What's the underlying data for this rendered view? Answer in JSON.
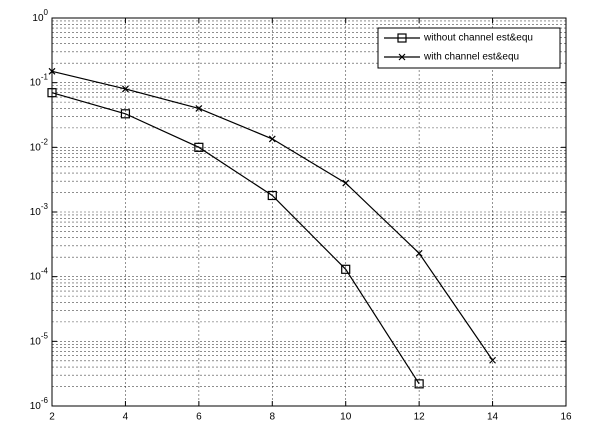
{
  "chart_data": {
    "type": "line",
    "log_y": true,
    "grid": true,
    "legend": "upper right",
    "xlim": [
      2,
      16
    ],
    "xticks": [
      2,
      4,
      6,
      8,
      10,
      12,
      14,
      16
    ],
    "ylim": [
      1e-06,
      1
    ],
    "yticks": [
      {
        "value": 1e-06,
        "label": "10^-6"
      },
      {
        "value": 1e-05,
        "label": "10^-5"
      },
      {
        "value": 0.0001,
        "label": "10^-4"
      },
      {
        "value": 0.001,
        "label": "10^-3"
      },
      {
        "value": 0.01,
        "label": "10^-2"
      },
      {
        "value": 0.1,
        "label": "10^-1"
      },
      {
        "value": 1,
        "label": "10^0"
      }
    ],
    "series": [
      {
        "name": "without channel est&equ",
        "color": "#000000",
        "marker": "square",
        "x": [
          2,
          4,
          6,
          8,
          10,
          12
        ],
        "values": [
          0.07,
          0.033,
          0.01,
          0.0018,
          0.00013,
          2.2e-06
        ]
      },
      {
        "name": "with channel est&equ",
        "color": "#000000",
        "marker": "x",
        "x": [
          2,
          4,
          6,
          8,
          10,
          12,
          14
        ],
        "values": [
          0.15,
          0.08,
          0.04,
          0.0135,
          0.0028,
          0.00023,
          5.1e-06
        ]
      }
    ]
  }
}
